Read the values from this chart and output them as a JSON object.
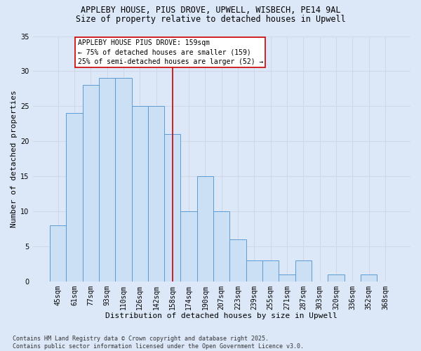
{
  "title1": "APPLEBY HOUSE, PIUS DROVE, UPWELL, WISBECH, PE14 9AL",
  "title2": "Size of property relative to detached houses in Upwell",
  "xlabel": "Distribution of detached houses by size in Upwell",
  "ylabel": "Number of detached properties",
  "categories": [
    "45sqm",
    "61sqm",
    "77sqm",
    "93sqm",
    "110sqm",
    "126sqm",
    "142sqm",
    "158sqm",
    "174sqm",
    "190sqm",
    "207sqm",
    "223sqm",
    "239sqm",
    "255sqm",
    "271sqm",
    "287sqm",
    "303sqm",
    "320sqm",
    "336sqm",
    "352sqm",
    "368sqm"
  ],
  "values": [
    8,
    24,
    28,
    29,
    29,
    25,
    25,
    21,
    10,
    15,
    10,
    6,
    3,
    3,
    1,
    3,
    0,
    1,
    0,
    1,
    0
  ],
  "bar_color": "#cce0f5",
  "bar_edge_color": "#5b9bd5",
  "highlight_index": 7,
  "annotation_lines": [
    "APPLEBY HOUSE PIUS DROVE: 159sqm",
    "← 75% of detached houses are smaller (159)",
    "25% of semi-detached houses are larger (52) →"
  ],
  "annotation_box_color": "#ffffff",
  "annotation_box_edge": "#cc0000",
  "red_line_color": "#cc0000",
  "grid_color": "#d0d8e8",
  "background_color": "#dce8f8",
  "ylim": [
    0,
    35
  ],
  "yticks": [
    0,
    5,
    10,
    15,
    20,
    25,
    30,
    35
  ],
  "footer": "Contains HM Land Registry data © Crown copyright and database right 2025.\nContains public sector information licensed under the Open Government Licence v3.0.",
  "title1_fontsize": 8.5,
  "title2_fontsize": 8.5,
  "xlabel_fontsize": 8.0,
  "ylabel_fontsize": 8.0,
  "tick_fontsize": 7.0,
  "annotation_fontsize": 7.0,
  "footer_fontsize": 6.0
}
